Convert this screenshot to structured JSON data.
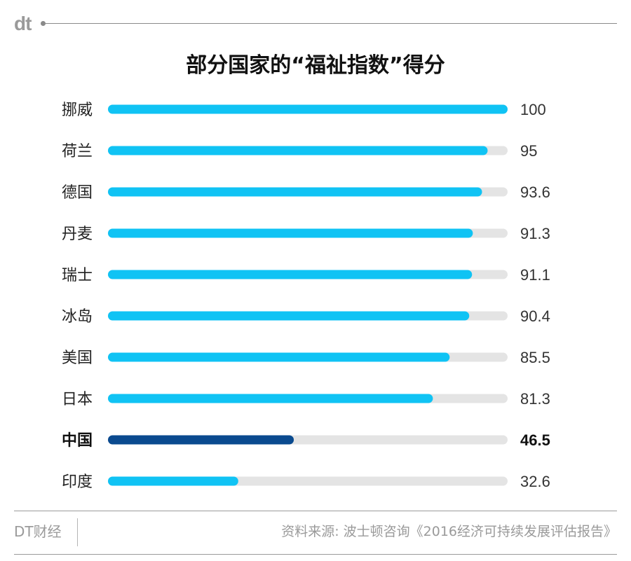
{
  "header": {
    "logo_text": "dt"
  },
  "chart_data": {
    "type": "bar",
    "orientation": "horizontal",
    "title": "部分国家的“福祉指数”得分",
    "categories": [
      "挪威",
      "荷兰",
      "德国",
      "丹麦",
      "瑞士",
      "冰岛",
      "美国",
      "日本",
      "中国",
      "印度"
    ],
    "values": [
      100,
      95,
      93.6,
      91.3,
      91.1,
      90.4,
      85.5,
      81.3,
      46.5,
      32.6
    ],
    "value_labels": [
      "100",
      "95",
      "93.6",
      "91.3",
      "91.1",
      "90.4",
      "85.5",
      "81.3",
      "46.5",
      "32.6"
    ],
    "highlight_category": "中国",
    "xlim": [
      0,
      100
    ],
    "grid": false,
    "legend": "none",
    "colors": {
      "bar": "#10c3f4",
      "bar_highlight": "#0a4a8f",
      "track": "#e4e4e4"
    }
  },
  "footer": {
    "brand": "DT财经",
    "source": "资料来源: 波士顿咨询《2016经济可持续发展评估报告》"
  }
}
